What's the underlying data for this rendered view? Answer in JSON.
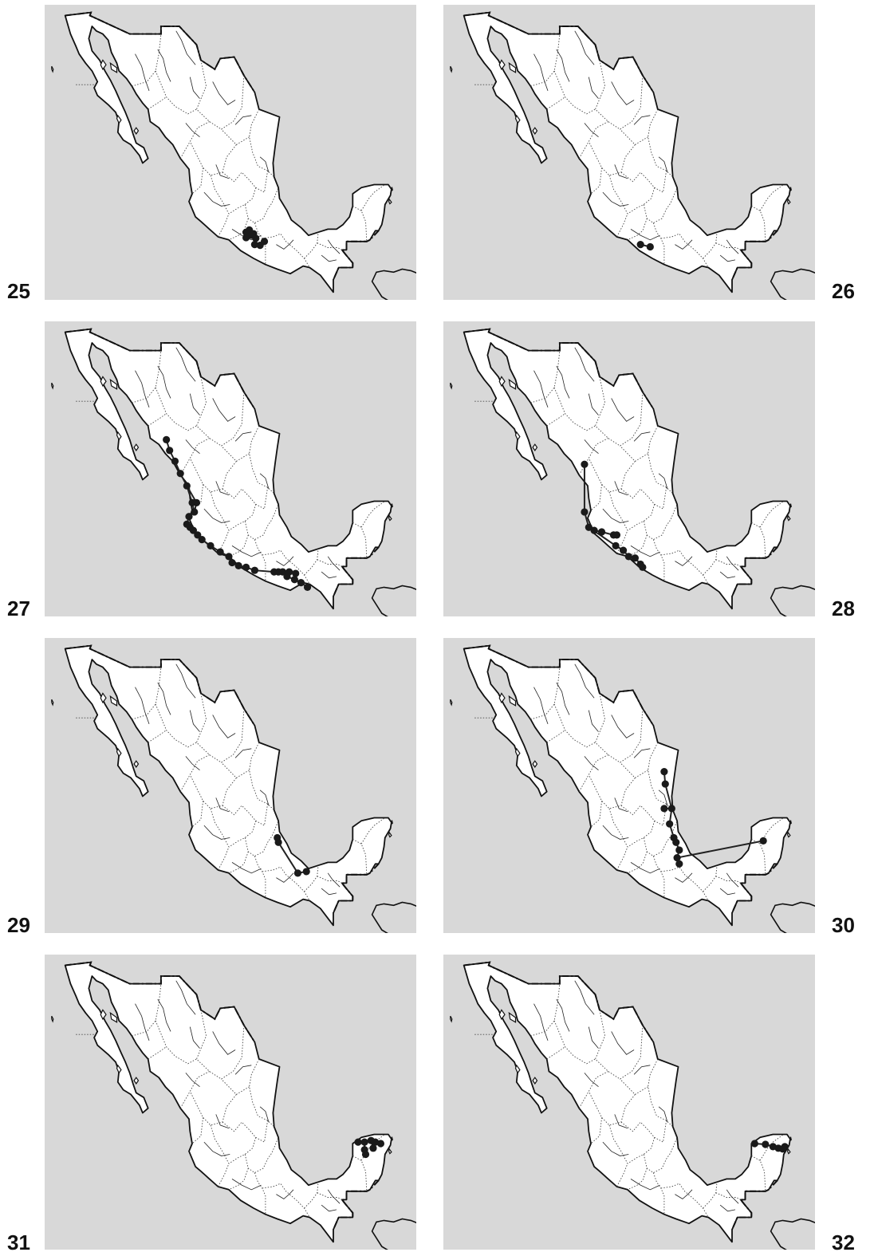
{
  "figure": {
    "panels": [
      {
        "number": "25",
        "label_side": "left",
        "localities": [
          [
            -100.3,
            18.4
          ],
          [
            -100.0,
            18.55
          ],
          [
            -99.6,
            18.3
          ],
          [
            -99.4,
            18.0
          ],
          [
            -99.5,
            17.6
          ],
          [
            -99.0,
            17.55
          ],
          [
            -98.6,
            17.8
          ],
          [
            -100.3,
            18.05
          ],
          [
            -99.8,
            18.2
          ]
        ],
        "connections": [
          [
            0,
            1
          ],
          [
            1,
            2
          ],
          [
            2,
            3
          ],
          [
            3,
            4
          ],
          [
            4,
            5
          ],
          [
            5,
            6
          ],
          [
            0,
            7
          ],
          [
            1,
            8
          ],
          [
            8,
            3
          ]
        ]
      },
      {
        "number": "26",
        "label_side": "right",
        "localities": [
          [
            -100.7,
            17.6
          ],
          [
            -99.8,
            17.45
          ]
        ],
        "connections": [
          [
            0,
            1
          ]
        ]
      },
      {
        "number": "27",
        "label_side": "left",
        "localities": [
          [
            -107.7,
            25.5
          ],
          [
            -107.4,
            24.8
          ],
          [
            -106.9,
            24.1
          ],
          [
            -106.4,
            23.3
          ],
          [
            -105.8,
            22.5
          ],
          [
            -105.3,
            21.4
          ],
          [
            -105.1,
            20.8
          ],
          [
            -105.6,
            20.5
          ],
          [
            -105.8,
            20.0
          ],
          [
            -105.5,
            19.8
          ],
          [
            -105.2,
            19.6
          ],
          [
            -104.8,
            19.3
          ],
          [
            -104.4,
            19.0
          ],
          [
            -103.6,
            18.6
          ],
          [
            -102.7,
            18.2
          ],
          [
            -101.9,
            17.9
          ],
          [
            -101.6,
            17.5
          ],
          [
            -101.0,
            17.3
          ],
          [
            -100.3,
            17.2
          ],
          [
            -99.5,
            17.0
          ],
          [
            -97.7,
            16.9
          ],
          [
            -97.3,
            16.9
          ],
          [
            -96.9,
            16.9
          ],
          [
            -96.5,
            16.6
          ],
          [
            -95.8,
            16.4
          ],
          [
            -95.2,
            16.2
          ],
          [
            -94.6,
            15.9
          ],
          [
            -96.3,
            16.9
          ],
          [
            -95.7,
            16.8
          ],
          [
            -104.9,
            21.4
          ]
        ],
        "connections": [
          [
            0,
            1
          ],
          [
            1,
            2
          ],
          [
            2,
            3
          ],
          [
            3,
            4
          ],
          [
            4,
            5
          ],
          [
            5,
            6
          ],
          [
            6,
            7
          ],
          [
            7,
            8
          ],
          [
            8,
            9
          ],
          [
            9,
            10
          ],
          [
            10,
            11
          ],
          [
            11,
            12
          ],
          [
            12,
            13
          ],
          [
            13,
            14
          ],
          [
            14,
            15
          ],
          [
            15,
            16
          ],
          [
            16,
            17
          ],
          [
            17,
            18
          ],
          [
            18,
            19
          ],
          [
            19,
            20
          ],
          [
            20,
            21
          ],
          [
            21,
            22
          ],
          [
            22,
            23
          ],
          [
            23,
            24
          ],
          [
            24,
            25
          ],
          [
            25,
            26
          ],
          [
            22,
            27
          ],
          [
            27,
            28
          ],
          [
            4,
            29
          ],
          [
            29,
            6
          ]
        ]
      },
      {
        "number": "28",
        "label_side": "right",
        "localities": [
          [
            -105.9,
            23.9
          ],
          [
            -105.9,
            20.8
          ],
          [
            -105.5,
            19.8
          ],
          [
            -105.0,
            19.6
          ],
          [
            -104.3,
            19.5
          ],
          [
            -103.2,
            19.3
          ],
          [
            -102.9,
            19.3
          ],
          [
            -103.0,
            18.6
          ],
          [
            -102.3,
            18.3
          ],
          [
            -101.8,
            17.9
          ],
          [
            -101.2,
            17.8
          ],
          [
            -100.7,
            17.4
          ],
          [
            -100.5,
            17.2
          ]
        ],
        "connections": [
          [
            0,
            1
          ],
          [
            1,
            2
          ],
          [
            2,
            3
          ],
          [
            3,
            4
          ],
          [
            4,
            5
          ],
          [
            5,
            6
          ],
          [
            2,
            7
          ],
          [
            7,
            8
          ],
          [
            8,
            9
          ],
          [
            9,
            10
          ],
          [
            10,
            11
          ],
          [
            11,
            12
          ]
        ]
      },
      {
        "number": "29",
        "label_side": "left",
        "localities": [
          [
            -97.4,
            20.2
          ],
          [
            -97.3,
            19.9
          ],
          [
            -95.5,
            17.9
          ],
          [
            -94.7,
            18.0
          ]
        ],
        "connections": [
          [
            0,
            1
          ],
          [
            1,
            2
          ],
          [
            2,
            3
          ]
        ]
      },
      {
        "number": "30",
        "label_side": "right",
        "localities": [
          [
            -98.5,
            24.5
          ],
          [
            -98.4,
            23.7
          ],
          [
            -98.5,
            22.1
          ],
          [
            -97.8,
            22.1
          ],
          [
            -98.0,
            21.1
          ],
          [
            -97.6,
            20.2
          ],
          [
            -97.4,
            19.9
          ],
          [
            -97.1,
            19.4
          ],
          [
            -97.3,
            18.9
          ],
          [
            -97.1,
            18.5
          ],
          [
            -89.3,
            20.0
          ]
        ],
        "connections": [
          [
            0,
            1
          ],
          [
            1,
            3
          ],
          [
            2,
            3
          ],
          [
            3,
            4
          ],
          [
            4,
            5
          ],
          [
            5,
            6
          ],
          [
            6,
            7
          ],
          [
            7,
            8
          ],
          [
            8,
            9
          ],
          [
            8,
            10
          ]
        ]
      },
      {
        "number": "31",
        "label_side": "left",
        "localities": [
          [
            -89.9,
            21.0
          ],
          [
            -89.3,
            21.0
          ],
          [
            -89.3,
            20.5
          ],
          [
            -88.7,
            21.1
          ],
          [
            -88.3,
            21.0
          ],
          [
            -87.8,
            20.9
          ],
          [
            -89.2,
            20.2
          ],
          [
            -88.5,
            20.6
          ]
        ],
        "connections": [
          [
            0,
            1
          ],
          [
            1,
            2
          ],
          [
            1,
            3
          ],
          [
            3,
            4
          ],
          [
            4,
            5
          ],
          [
            2,
            6
          ],
          [
            3,
            7
          ]
        ]
      },
      {
        "number": "32",
        "label_side": "right",
        "localities": [
          [
            -90.1,
            20.9
          ],
          [
            -89.1,
            20.85
          ],
          [
            -88.4,
            20.7
          ],
          [
            -87.9,
            20.6
          ],
          [
            -87.5,
            20.55
          ],
          [
            -87.3,
            20.7
          ]
        ],
        "connections": [
          [
            0,
            1
          ],
          [
            1,
            2
          ],
          [
            2,
            3
          ],
          [
            3,
            4
          ],
          [
            4,
            5
          ]
        ]
      }
    ]
  }
}
